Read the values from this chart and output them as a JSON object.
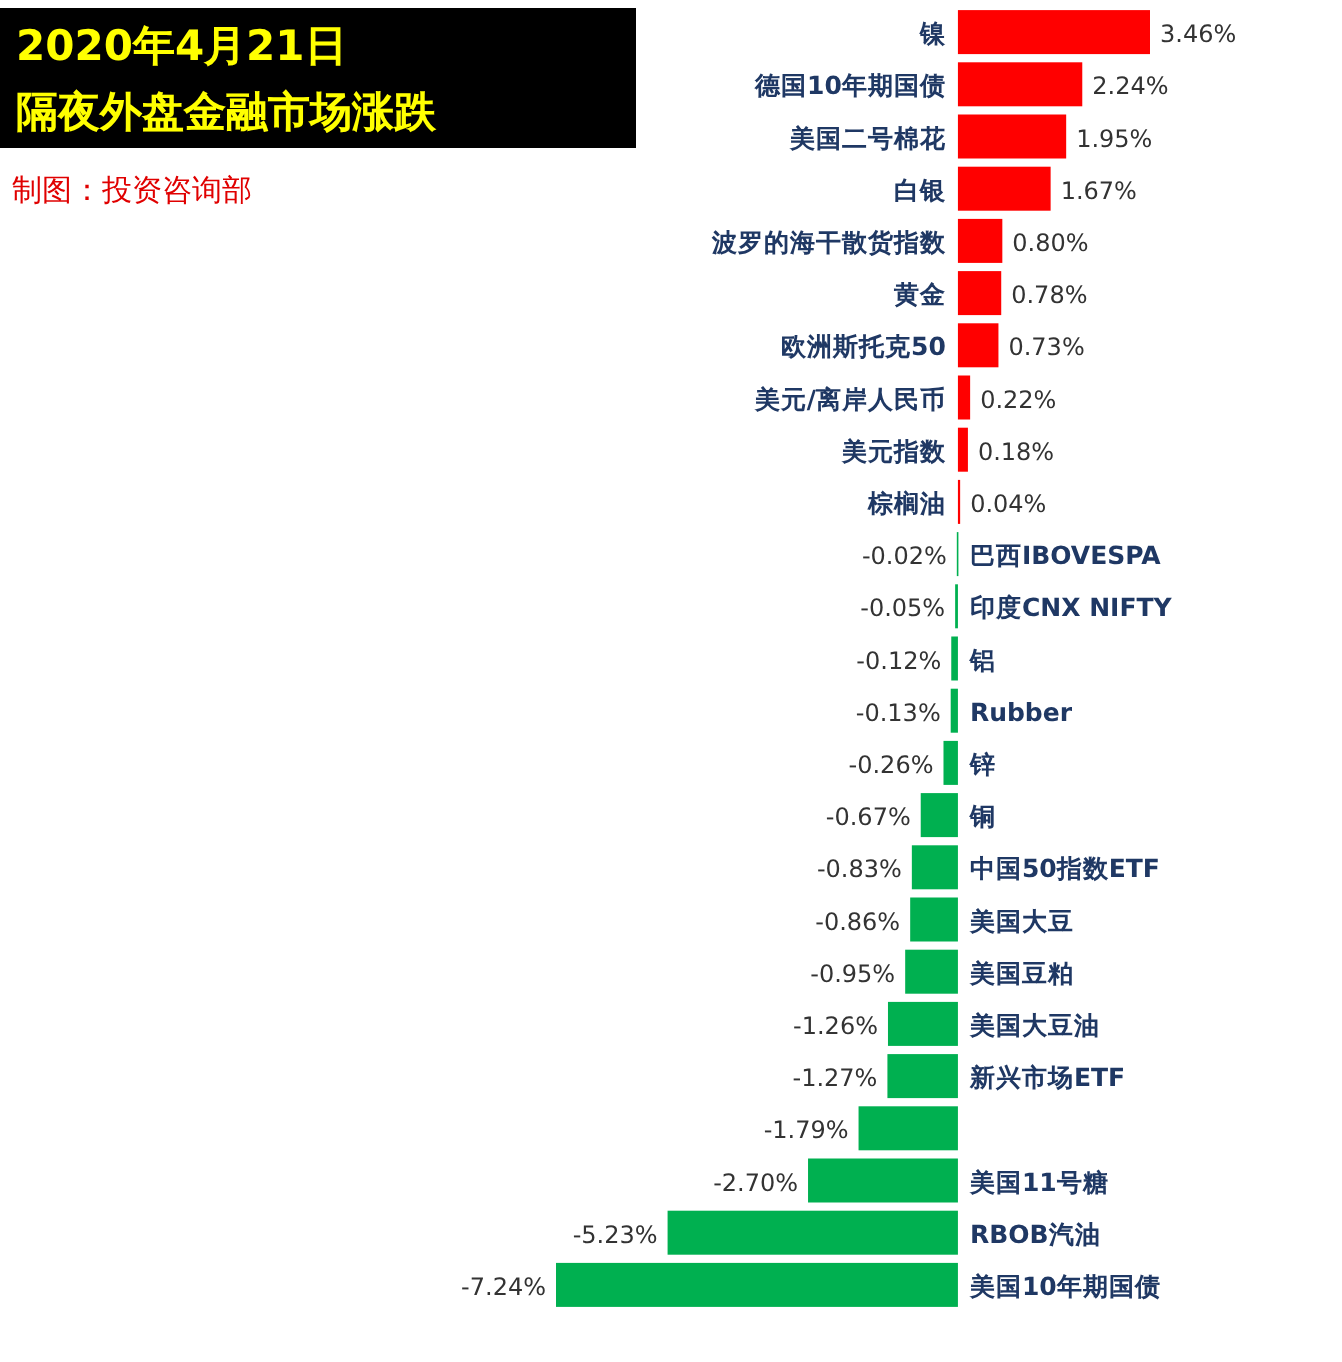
{
  "chart_data": {
    "type": "bar",
    "orientation": "horizontal",
    "title": "2020年4月21日",
    "subtitle": "隔夜外盘金融市场涨跌",
    "annotations": [
      "制图：投资咨询部"
    ],
    "categories": [
      "镍",
      "德国10年期国债",
      "美国二号棉花",
      "白银",
      "波罗的海干散货指数",
      "黄金",
      "欧洲斯托克50",
      "美元/离岸人民币",
      "美元指数",
      "棕榈油",
      "巴西IBOVESPA",
      "印度CNX NIFTY",
      "铝",
      "Rubber",
      "锌",
      "铜",
      "中国50指数ETF",
      "美国大豆",
      "美国豆粕",
      "美国大豆油",
      "新兴市场ETF",
      null,
      "美国11号糖",
      "RBOB汽油",
      "美国10年期国债"
    ],
    "values": [
      3.46,
      2.24,
      1.95,
      1.67,
      0.8,
      0.78,
      0.73,
      0.22,
      0.18,
      0.04,
      -0.02,
      -0.05,
      -0.12,
      -0.13,
      -0.26,
      -0.67,
      -0.83,
      -0.86,
      -0.95,
      -1.26,
      -1.27,
      -1.79,
      -2.7,
      -5.23,
      -7.24
    ],
    "value_labels": [
      "3.46%",
      "2.24%",
      "1.95%",
      "1.67%",
      "0.80%",
      "0.78%",
      "0.73%",
      "0.22%",
      "0.18%",
      "0.04%",
      "-0.02%",
      "-0.05%",
      "-0.12%",
      "-0.13%",
      "-0.26%",
      "-0.67%",
      "-0.83%",
      "-0.86%",
      "-0.95%",
      "-1.26%",
      "-1.27%",
      "-1.79%",
      "-2.70%",
      "-5.23%",
      "-7.24%"
    ],
    "colors": [
      "#ff0000",
      "#ff0000",
      "#ff0000",
      "#ff0000",
      "#ff0000",
      "#ff0000",
      "#ff0000",
      "#ff0000",
      "#ff0000",
      "#ff0000",
      "#00b050",
      "#00b050",
      "#00b050",
      "#00b050",
      "#00b050",
      "#00b050",
      "#00b050",
      "#00b050",
      "#00b050",
      "#00b050",
      "#00b050",
      "#00b050",
      "#00b050",
      "#00b050",
      "#00b050"
    ]
  }
}
